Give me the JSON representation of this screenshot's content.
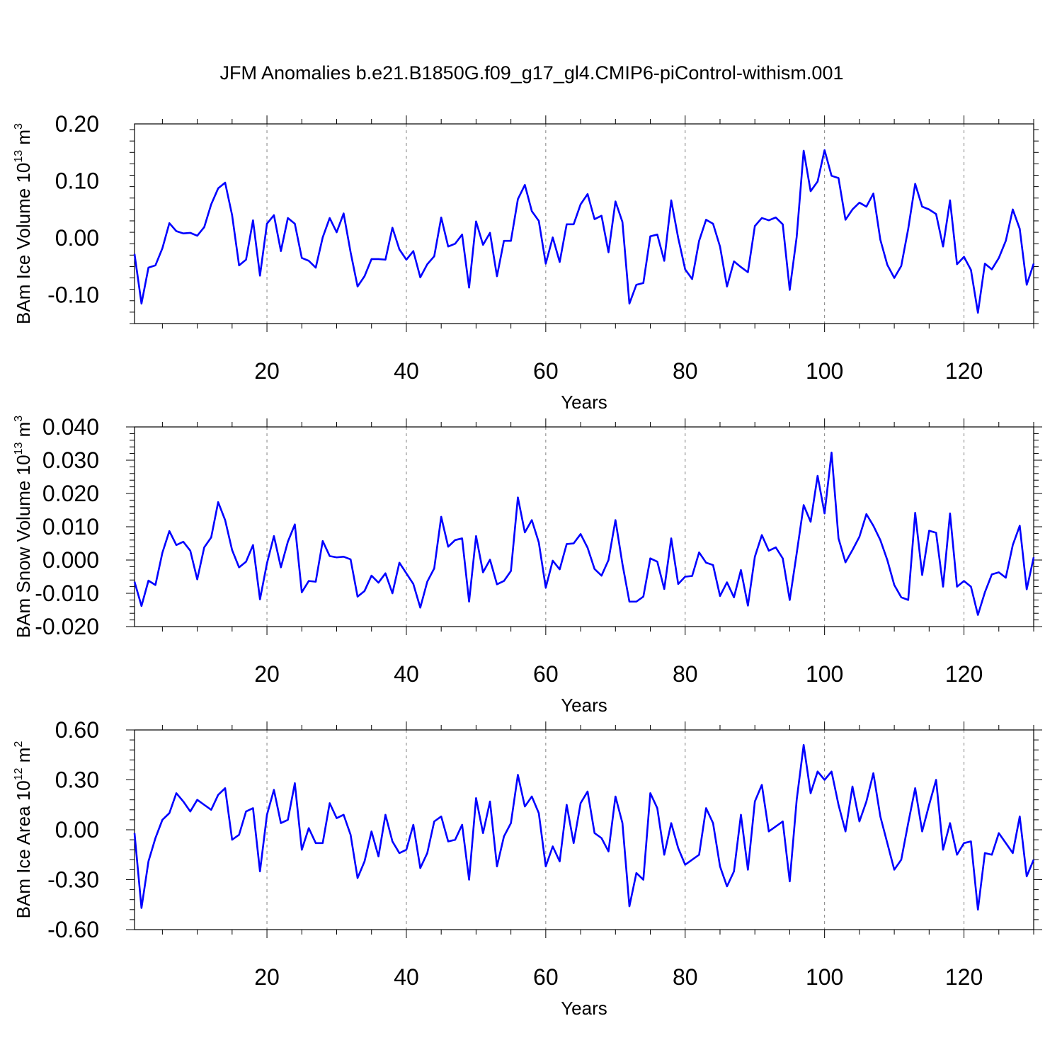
{
  "figure": {
    "title": "JFM Anomalies b.e21.B1850G.f09_g17_gl4.CMIP6-piControl-withism.001",
    "line_color": "#0000ff",
    "grid_color": "#808080"
  },
  "chart_data": [
    {
      "type": "line",
      "title": "",
      "xlabel": "Years",
      "ylabel": "BAm Ice Volume 10",
      "ylabel_exp": "13",
      "ylabel_unit": "m",
      "ylabel_unit_exp": "3",
      "xlim": [
        1,
        130
      ],
      "ylim": [
        -0.15,
        0.2
      ],
      "x_ticks": [
        20,
        40,
        60,
        80,
        100,
        120
      ],
      "x_tick_labels": [
        "20",
        "40",
        "60",
        "80",
        "100",
        "120"
      ],
      "y_ticks": [
        -0.1,
        0.0,
        0.1,
        0.2
      ],
      "y_tick_labels": [
        "-0.10",
        "0.00",
        "0.10",
        "0.20"
      ],
      "grid": "vertical dashed at major x ticks",
      "series": [
        {
          "values": [
            -0.028,
            -0.115,
            -0.052,
            -0.048,
            -0.018,
            0.026,
            0.012,
            0.008,
            0.009,
            0.004,
            0.019,
            0.059,
            0.087,
            0.097,
            0.04,
            -0.048,
            -0.038,
            0.031,
            -0.066,
            0.025,
            0.04,
            -0.023,
            0.035,
            0.025,
            -0.035,
            -0.04,
            -0.052,
            0.001,
            0.035,
            0.01,
            0.043,
            -0.025,
            -0.085,
            -0.067,
            -0.037,
            -0.037,
            -0.038,
            0.018,
            -0.02,
            -0.038,
            -0.023,
            -0.069,
            -0.046,
            -0.032,
            0.036,
            -0.015,
            -0.01,
            0.006,
            -0.087,
            0.029,
            -0.012,
            0.009,
            -0.067,
            -0.005,
            -0.005,
            0.068,
            0.093,
            0.047,
            0.03,
            -0.045,
            0.001,
            -0.042,
            0.024,
            0.024,
            0.059,
            0.077,
            0.033,
            0.039,
            -0.025,
            0.064,
            0.028,
            -0.115,
            -0.082,
            -0.079,
            0.003,
            0.006,
            -0.04,
            0.066,
            0.0,
            -0.055,
            -0.072,
            -0.005,
            0.032,
            0.025,
            -0.015,
            -0.085,
            -0.041,
            -0.051,
            -0.06,
            0.021,
            0.035,
            0.031,
            0.036,
            0.024,
            -0.091,
            0.002,
            0.153,
            0.082,
            0.099,
            0.154,
            0.109,
            0.105,
            0.032,
            0.05,
            0.062,
            0.055,
            0.078,
            -0.003,
            -0.047,
            -0.07,
            -0.049,
            0.016,
            0.095,
            0.055,
            0.05,
            0.042,
            -0.015,
            0.066,
            -0.046,
            -0.033,
            -0.056,
            -0.131,
            -0.045,
            -0.055,
            -0.035,
            -0.005,
            0.05,
            0.016,
            -0.082,
            -0.045
          ]
        }
      ]
    },
    {
      "type": "line",
      "title": "",
      "xlabel": "Years",
      "ylabel": "BAm Snow Volume 10",
      "ylabel_exp": "13",
      "ylabel_unit": "m",
      "ylabel_unit_exp": "3",
      "xlim": [
        1,
        130
      ],
      "ylim": [
        -0.02,
        0.04
      ],
      "x_ticks": [
        20,
        40,
        60,
        80,
        100,
        120
      ],
      "x_tick_labels": [
        "20",
        "40",
        "60",
        "80",
        "100",
        "120"
      ],
      "y_ticks": [
        -0.02,
        -0.01,
        0.0,
        0.01,
        0.02,
        0.03,
        0.04
      ],
      "y_tick_labels": [
        "-0.020",
        "-0.010",
        "0.000",
        "0.010",
        "0.020",
        "0.030",
        "0.040"
      ],
      "grid": "vertical dashed at major x ticks",
      "series": [
        {
          "values": [
            -0.0065,
            -0.0138,
            -0.0062,
            -0.0075,
            0.0022,
            0.0087,
            0.0045,
            0.0055,
            0.0028,
            -0.0058,
            0.0038,
            0.0068,
            0.0174,
            0.012,
            0.003,
            -0.0022,
            -0.0005,
            0.0045,
            -0.0118,
            -0.001,
            0.0072,
            -0.0022,
            0.0055,
            0.0107,
            -0.0097,
            -0.0063,
            -0.0065,
            0.0057,
            0.0012,
            0.0008,
            0.001,
            0.0002,
            -0.011,
            -0.0093,
            -0.0047,
            -0.0068,
            -0.004,
            -0.01,
            -0.0008,
            -0.004,
            -0.0072,
            -0.0143,
            -0.0065,
            -0.0025,
            0.013,
            0.004,
            0.006,
            0.0065,
            -0.0125,
            0.0072,
            -0.0037,
            0.0001,
            -0.0073,
            -0.0063,
            -0.0033,
            0.0188,
            0.0083,
            0.012,
            0.0053,
            -0.0083,
            -0.0002,
            -0.0028,
            0.0048,
            0.005,
            0.0078,
            0.0037,
            -0.0027,
            -0.0047,
            0.0,
            0.012,
            -0.0012,
            -0.0125,
            -0.0125,
            -0.011,
            0.0005,
            -0.0005,
            -0.0087,
            0.0065,
            -0.0072,
            -0.005,
            -0.0048,
            0.0023,
            -0.0008,
            -0.0015,
            -0.0108,
            -0.0067,
            -0.0112,
            -0.003,
            -0.0137,
            0.001,
            0.0075,
            0.0028,
            0.0038,
            0.0005,
            -0.012,
            0.002,
            0.0165,
            0.0115,
            0.0253,
            0.014,
            0.0323,
            0.0065,
            -0.0007,
            0.003,
            0.007,
            0.0138,
            0.0103,
            0.006,
            0.0,
            -0.0075,
            -0.0112,
            -0.012,
            0.0142,
            -0.0045,
            0.0088,
            0.0082,
            -0.008,
            0.014,
            -0.008,
            -0.0063,
            -0.008,
            -0.0165,
            -0.0097,
            -0.0043,
            -0.0037,
            -0.0053,
            0.0045,
            0.0103,
            -0.0088,
            0.0008
          ]
        }
      ]
    },
    {
      "type": "line",
      "title": "",
      "xlabel": "Years",
      "ylabel": "BAm Ice Area 10",
      "ylabel_exp": "12",
      "ylabel_unit": "m",
      "ylabel_unit_exp": "2",
      "xlim": [
        1,
        130
      ],
      "ylim": [
        -0.6,
        0.6
      ],
      "x_ticks": [
        20,
        40,
        60,
        80,
        100,
        120
      ],
      "x_tick_labels": [
        "20",
        "40",
        "60",
        "80",
        "100",
        "120"
      ],
      "y_ticks": [
        -0.6,
        -0.3,
        0.0,
        0.3,
        0.6
      ],
      "y_tick_labels": [
        "-0.60",
        "-0.30",
        "0.00",
        "0.30",
        "0.60"
      ],
      "grid": "vertical dashed at major x ticks",
      "series": [
        {
          "values": [
            -0.02,
            -0.47,
            -0.19,
            -0.05,
            0.06,
            0.1,
            0.22,
            0.17,
            0.11,
            0.18,
            0.15,
            0.12,
            0.21,
            0.25,
            -0.06,
            -0.03,
            0.11,
            0.13,
            -0.25,
            0.09,
            0.24,
            0.04,
            0.06,
            0.28,
            -0.12,
            0.01,
            -0.08,
            -0.08,
            0.16,
            0.07,
            0.09,
            -0.03,
            -0.29,
            -0.19,
            -0.01,
            -0.16,
            0.09,
            -0.07,
            -0.14,
            -0.12,
            0.03,
            -0.23,
            -0.14,
            0.05,
            0.08,
            -0.07,
            -0.06,
            0.03,
            -0.3,
            0.19,
            -0.02,
            0.17,
            -0.22,
            -0.04,
            0.04,
            0.33,
            0.14,
            0.2,
            0.1,
            -0.22,
            -0.1,
            -0.19,
            0.15,
            -0.08,
            0.16,
            0.23,
            -0.02,
            -0.05,
            -0.13,
            0.2,
            0.04,
            -0.46,
            -0.26,
            -0.3,
            0.22,
            0.13,
            -0.15,
            0.04,
            -0.11,
            -0.21,
            -0.18,
            -0.15,
            0.13,
            0.04,
            -0.22,
            -0.34,
            -0.25,
            0.09,
            -0.24,
            0.17,
            0.27,
            -0.01,
            0.02,
            0.05,
            -0.31,
            0.18,
            0.51,
            0.22,
            0.35,
            0.3,
            0.35,
            0.15,
            -0.01,
            0.26,
            0.05,
            0.17,
            0.34,
            0.08,
            -0.08,
            -0.24,
            -0.18,
            0.04,
            0.25,
            -0.01,
            0.15,
            0.3,
            -0.12,
            0.04,
            -0.15,
            -0.08,
            -0.07,
            -0.48,
            -0.14,
            -0.15,
            -0.02,
            -0.08,
            -0.14,
            0.08,
            -0.28,
            -0.18
          ]
        }
      ]
    }
  ]
}
